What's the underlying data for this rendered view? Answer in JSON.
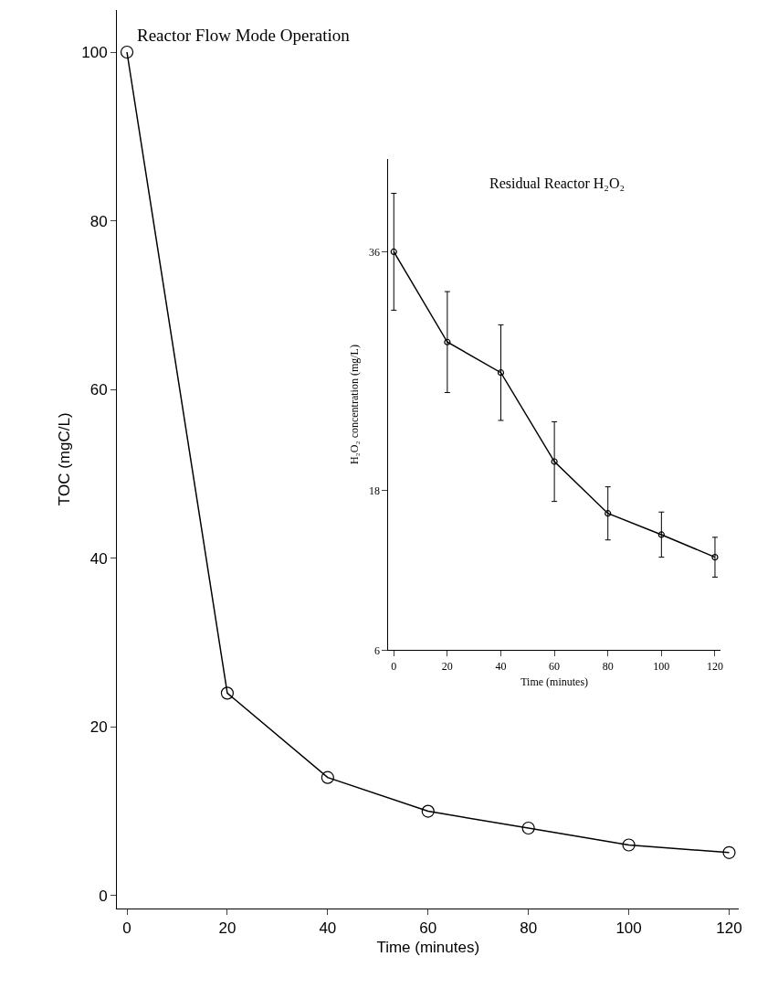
{
  "chart_data": [
    {
      "type": "line",
      "title": "Reactor Flow Mode Operation",
      "xlabel": "Time (minutes)",
      "ylabel": "TOC (mgC/L)",
      "x": [
        0,
        20,
        40,
        60,
        80,
        100,
        120
      ],
      "series": [
        {
          "color": "#000000",
          "values": [
            100,
            24,
            14,
            10,
            8,
            6,
            5.1
          ]
        }
      ],
      "xlim": [
        -2,
        122
      ],
      "ylim": [
        -1.5,
        105
      ],
      "xticks": [
        0,
        20,
        40,
        60,
        80,
        100,
        120
      ],
      "yticks": [
        0,
        20,
        40,
        60,
        80,
        100
      ],
      "marker": "circle",
      "line_style": "solid"
    },
    {
      "type": "line",
      "title": "Residual Reactor H₂O₂",
      "xlabel": "Time (minutes)",
      "ylabel": "H₂O₂ concentration (mg/L)",
      "x": [
        0,
        20,
        40,
        60,
        80,
        100,
        120
      ],
      "series": [
        {
          "color": "#000000",
          "values": [
            36,
            29.2,
            26.9,
            20.2,
            16.3,
            14.7,
            13
          ],
          "errors": [
            4.4,
            3.8,
            3.6,
            3,
            2,
            1.7,
            1.5
          ]
        }
      ],
      "xlim": [
        -2,
        122
      ],
      "ylim": [
        6,
        43
      ],
      "xticks": [
        0,
        20,
        40,
        60,
        80,
        100,
        120
      ],
      "yticks": [
        6,
        18,
        36
      ],
      "marker": "circle",
      "line_style": "solid"
    }
  ]
}
